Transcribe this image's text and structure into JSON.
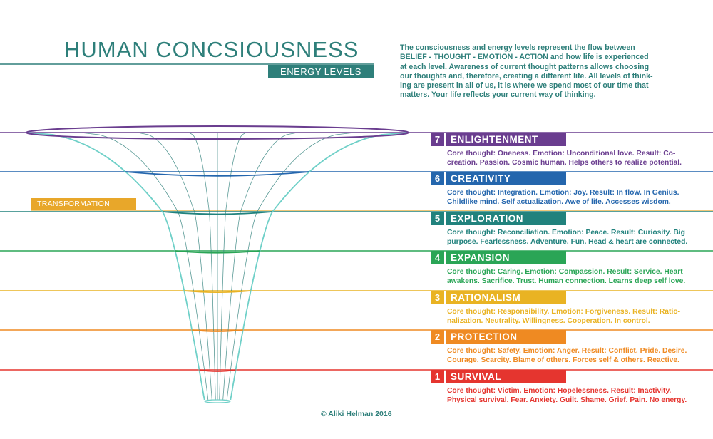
{
  "title": "HUMAN CONCSIOUSNESS",
  "subtitle": "ENERGY LEVELS",
  "intro_lines": [
    "The consciousness and energy levels represent the flow between",
    "BELIEF - THOUGHT - EMOTION - ACTION and how life is experienced",
    "at each level. Awareness of current thought patterns allows choosing",
    "our thoughts and, therefore, creating a different life. All levels of think-",
    "ing are present in all of us, it is where we spend most of our time that",
    "matters. Your life reflects your current way of thinking."
  ],
  "transformation_label": "TRANSFORMATION",
  "levels": [
    {
      "number": "7",
      "name": "ENLIGHTENMENT",
      "color": "#6a3d8f",
      "lines": [
        "Core thought: Oneness. Emotion: Unconditional love. Result: Co-",
        "creation. Passion. Cosmic human. Helps others to realize potential."
      ]
    },
    {
      "number": "6",
      "name": "CREATIVITY",
      "color": "#2466ad",
      "lines": [
        "Core thought: Integration. Emotion: Joy. Result: In flow. In Genius.",
        "Childlike mind. Self actualization. Awe of life. Accesses wisdom."
      ]
    },
    {
      "number": "5",
      "name": "EXPLORATION",
      "color": "#21827d",
      "lines": [
        "Core thought: Reconciliation. Emotion: Peace. Result: Curiosity. Big",
        "purpose. Fearlessness. Adventure. Fun. Head & heart are connected."
      ]
    },
    {
      "number": "4",
      "name": "EXPANSION",
      "color": "#2aa556",
      "lines": [
        "Core thought: Caring. Emotion: Compassion. Result: Service. Heart",
        "awakens. Sacrifice. Trust. Human connection. Learns deep self love."
      ]
    },
    {
      "number": "3",
      "name": "RATIONALISM",
      "color": "#e9b323",
      "lines": [
        "Core thought: Responsibility. Emotion: Forgiveness. Result: Ratio-",
        "nalization. Neutrality. Willingness. Cooperation. In control."
      ]
    },
    {
      "number": "2",
      "name": "PROTECTION",
      "color": "#ef8a22",
      "lines": [
        "Core thought: Safety. Emotion: Anger. Result: Conflict. Pride. Desire.",
        "Courage. Scarcity. Blame of others. Forces self & others. Reactive."
      ]
    },
    {
      "number": "1",
      "name": "SURVIVAL",
      "color": "#e5352f",
      "lines": [
        "Core thought: Victim. Emotion: Hopelessness. Result: Inactivity.",
        "Physical survival. Fear. Anxiety. Guilt. Shame. Grief. Pain. No energy."
      ]
    }
  ],
  "copyright": "© Aliki Helman 2016",
  "colors": {
    "teal": "#2e7f7a",
    "funnel": "#6fd0c8",
    "transformation": "#e8a72a"
  }
}
